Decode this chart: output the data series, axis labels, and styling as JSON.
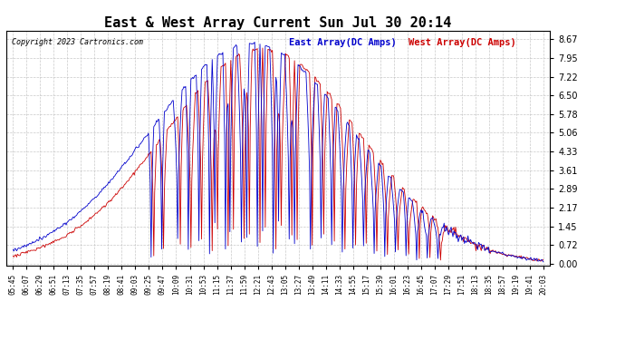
{
  "title": "East & West Array Current Sun Jul 30 20:14",
  "copyright": "Copyright 2023 Cartronics.com",
  "east_label": "East Array(DC Amps)",
  "west_label": "West Array(DC Amps)",
  "east_color": "#0000cc",
  "west_color": "#cc0000",
  "background_color": "#ffffff",
  "grid_color": "#bbbbbb",
  "yticks": [
    0.0,
    0.72,
    1.45,
    2.17,
    2.89,
    3.61,
    4.33,
    5.06,
    5.78,
    6.5,
    7.22,
    7.95,
    8.67
  ],
  "ylim": [
    -0.05,
    9.0
  ],
  "x_labels": [
    "05:45",
    "06:07",
    "06:29",
    "06:51",
    "07:13",
    "07:35",
    "07:57",
    "08:19",
    "08:41",
    "09:03",
    "09:25",
    "09:47",
    "10:09",
    "10:31",
    "10:53",
    "11:15",
    "11:37",
    "11:59",
    "12:21",
    "12:43",
    "13:05",
    "13:27",
    "13:49",
    "14:11",
    "14:33",
    "14:55",
    "15:17",
    "15:39",
    "16:01",
    "16:23",
    "16:45",
    "17:07",
    "17:29",
    "17:51",
    "18:13",
    "18:35",
    "18:57",
    "19:19",
    "19:41",
    "20:03"
  ]
}
